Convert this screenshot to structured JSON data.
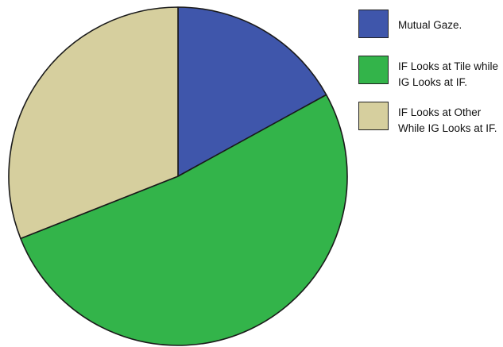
{
  "chart_data": {
    "type": "pie",
    "title": "",
    "start_angle_deg": 0,
    "direction": "clockwise",
    "slices": [
      {
        "label": "Mutual Gaze.",
        "value": 17,
        "color": "#3f56ab"
      },
      {
        "label": "IF Looks at Tile while IG Looks at IF.",
        "value": 52,
        "color": "#33b44a"
      },
      {
        "label": "IF Looks at Other While IG Looks at IF.",
        "value": 31,
        "color": "#d6cf9e"
      }
    ],
    "legend": {
      "position": "top-right",
      "items": [
        {
          "label": "Mutual Gaze.",
          "color": "#3f56ab"
        },
        {
          "label": "IF Looks at Tile while IG Looks at IF.",
          "color": "#33b44a"
        },
        {
          "label": "IF Looks at Other While IG Looks at IF.",
          "color": "#d6cf9e"
        }
      ]
    }
  }
}
